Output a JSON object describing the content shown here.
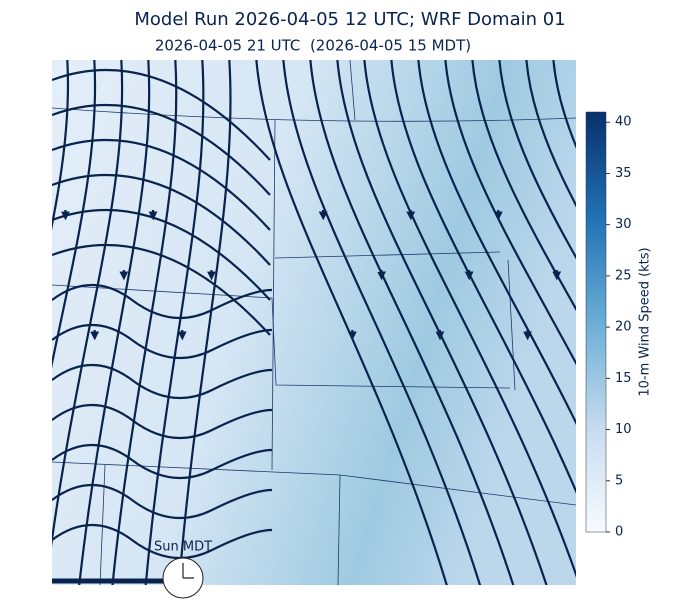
{
  "header": {
    "title": "Model Run 2026-04-05 12 UTC; WRF Domain 01",
    "subtitle": "2026-04-05 21 UTC  (2026-04-05 15 MDT)"
  },
  "colorbar": {
    "label": "10-m Wind Speed (kts)",
    "range": [
      0,
      41
    ],
    "ticks": [
      0,
      5,
      10,
      15,
      20,
      25,
      30,
      35,
      40
    ]
  },
  "clock": {
    "label": "Sun MDT"
  }
}
